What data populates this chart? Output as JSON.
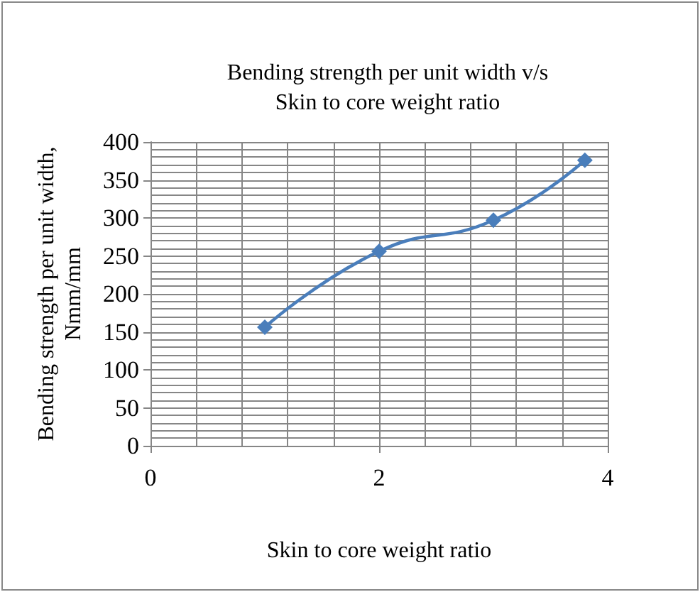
{
  "chart_data": {
    "type": "line",
    "title": "Bending strength per unit width v/s\nSkin to core weight ratio",
    "xlabel": "Skin to core weight ratio",
    "ylabel": "Bending strength per unit width,\nNmm/mm",
    "x": [
      1,
      2,
      3,
      3.8
    ],
    "series": [
      {
        "color": "#4a7ebb",
        "values": [
          156,
          256,
          297,
          376
        ]
      }
    ],
    "xlim": [
      0,
      4
    ],
    "xticks": [
      0,
      2,
      4
    ],
    "ylim": [
      0,
      400
    ],
    "yticks": [
      0,
      50,
      100,
      150,
      200,
      250,
      300,
      350,
      400
    ],
    "grid": true,
    "marker": "diamond",
    "line_style": "solid"
  }
}
